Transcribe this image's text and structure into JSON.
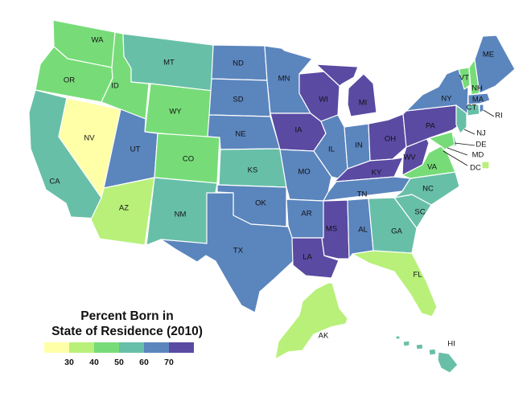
{
  "legend": {
    "title_line1": "Percent Born in",
    "title_line2": "State of Residence (2010)",
    "ticks": [
      "30",
      "40",
      "50",
      "60",
      "70"
    ],
    "bins": [
      "#ffffa8",
      "#b8f07a",
      "#77dc78",
      "#68bfa8",
      "#5b85bd",
      "#5a4aa2"
    ]
  },
  "states": [
    {
      "abbr": "WA",
      "bin": 2
    },
    {
      "abbr": "OR",
      "bin": 2
    },
    {
      "abbr": "CA",
      "bin": 3
    },
    {
      "abbr": "NV",
      "bin": 0
    },
    {
      "abbr": "ID",
      "bin": 2
    },
    {
      "abbr": "MT",
      "bin": 3
    },
    {
      "abbr": "WY",
      "bin": 2
    },
    {
      "abbr": "UT",
      "bin": 4
    },
    {
      "abbr": "AZ",
      "bin": 1
    },
    {
      "abbr": "CO",
      "bin": 2
    },
    {
      "abbr": "NM",
      "bin": 3
    },
    {
      "abbr": "ND",
      "bin": 4
    },
    {
      "abbr": "SD",
      "bin": 4
    },
    {
      "abbr": "NE",
      "bin": 4
    },
    {
      "abbr": "KS",
      "bin": 3
    },
    {
      "abbr": "OK",
      "bin": 4
    },
    {
      "abbr": "TX",
      "bin": 4
    },
    {
      "abbr": "MN",
      "bin": 4
    },
    {
      "abbr": "IA",
      "bin": 5
    },
    {
      "abbr": "MO",
      "bin": 4
    },
    {
      "abbr": "AR",
      "bin": 4
    },
    {
      "abbr": "LA",
      "bin": 5
    },
    {
      "abbr": "WI",
      "bin": 5
    },
    {
      "abbr": "IL",
      "bin": 4
    },
    {
      "abbr": "MI",
      "bin": 5
    },
    {
      "abbr": "IN",
      "bin": 4
    },
    {
      "abbr": "OH",
      "bin": 5
    },
    {
      "abbr": "KY",
      "bin": 5
    },
    {
      "abbr": "TN",
      "bin": 4
    },
    {
      "abbr": "MS",
      "bin": 5
    },
    {
      "abbr": "AL",
      "bin": 4
    },
    {
      "abbr": "GA",
      "bin": 3
    },
    {
      "abbr": "FL",
      "bin": 1
    },
    {
      "abbr": "SC",
      "bin": 3
    },
    {
      "abbr": "NC",
      "bin": 3
    },
    {
      "abbr": "VA",
      "bin": 2
    },
    {
      "abbr": "WV",
      "bin": 5
    },
    {
      "abbr": "PA",
      "bin": 5
    },
    {
      "abbr": "NY",
      "bin": 4
    },
    {
      "abbr": "VT",
      "bin": 2
    },
    {
      "abbr": "NH",
      "bin": 2
    },
    {
      "abbr": "ME",
      "bin": 4
    },
    {
      "abbr": "MA",
      "bin": 4
    },
    {
      "abbr": "CT",
      "bin": 3
    },
    {
      "abbr": "RI",
      "bin": 4
    },
    {
      "abbr": "NJ",
      "bin": 3
    },
    {
      "abbr": "DE",
      "bin": 3
    },
    {
      "abbr": "MD",
      "bin": 2
    },
    {
      "abbr": "DC",
      "bin": 1
    },
    {
      "abbr": "AK",
      "bin": 1
    },
    {
      "abbr": "HI",
      "bin": 3
    }
  ]
}
